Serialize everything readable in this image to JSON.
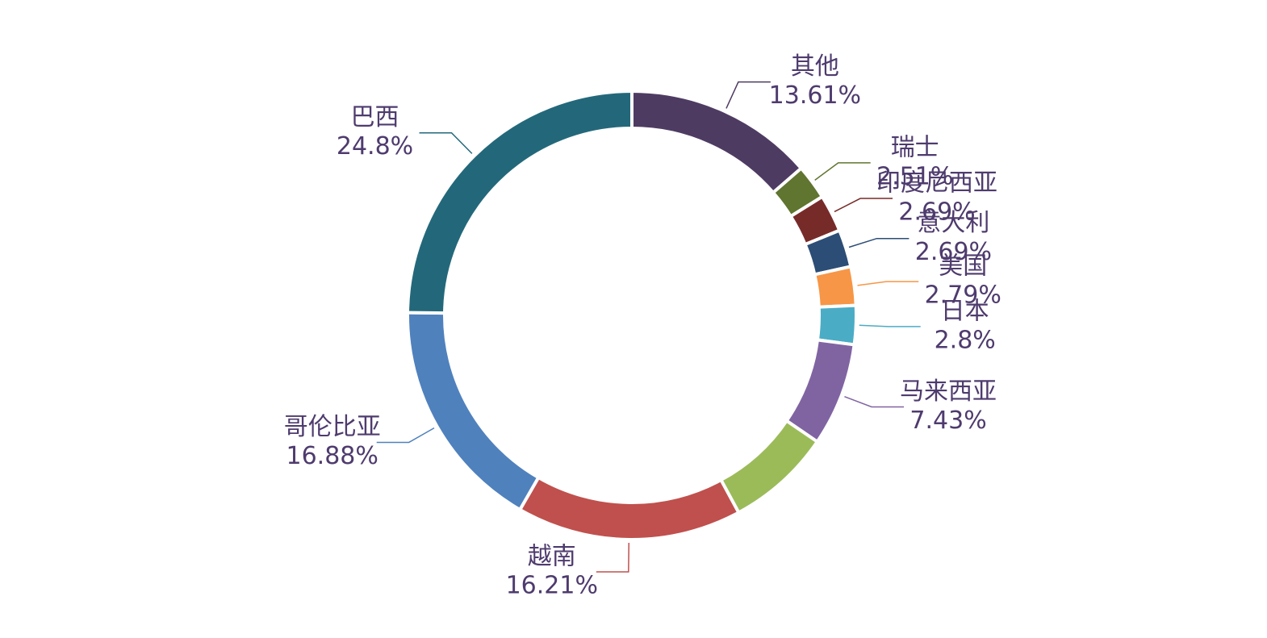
{
  "chart_data": {
    "type": "donut",
    "categories": [
      "其他",
      "瑞士",
      "印度尼西亚",
      "意大利",
      "美国",
      "日本",
      "马来西亚",
      null,
      "越南",
      "哥伦比亚",
      "巴西"
    ],
    "values": [
      13.61,
      2.51,
      2.69,
      2.69,
      2.79,
      2.8,
      7.43,
      7.58,
      16.21,
      16.88,
      24.8
    ],
    "value_labels": [
      "13.61%",
      "2.51%",
      "2.69%",
      "2.69%",
      "2.79%",
      "2.8%",
      "7.43%",
      null,
      "16.21%",
      "16.88%",
      "24.8%"
    ],
    "colors": [
      "#4e3b62",
      "#60752f",
      "#772b29",
      "#2c4d75",
      "#f79646",
      "#4bacc6",
      "#8064a2",
      "#9bbb59",
      "#c0504d",
      "#4f81bd",
      "#23687a"
    ]
  }
}
